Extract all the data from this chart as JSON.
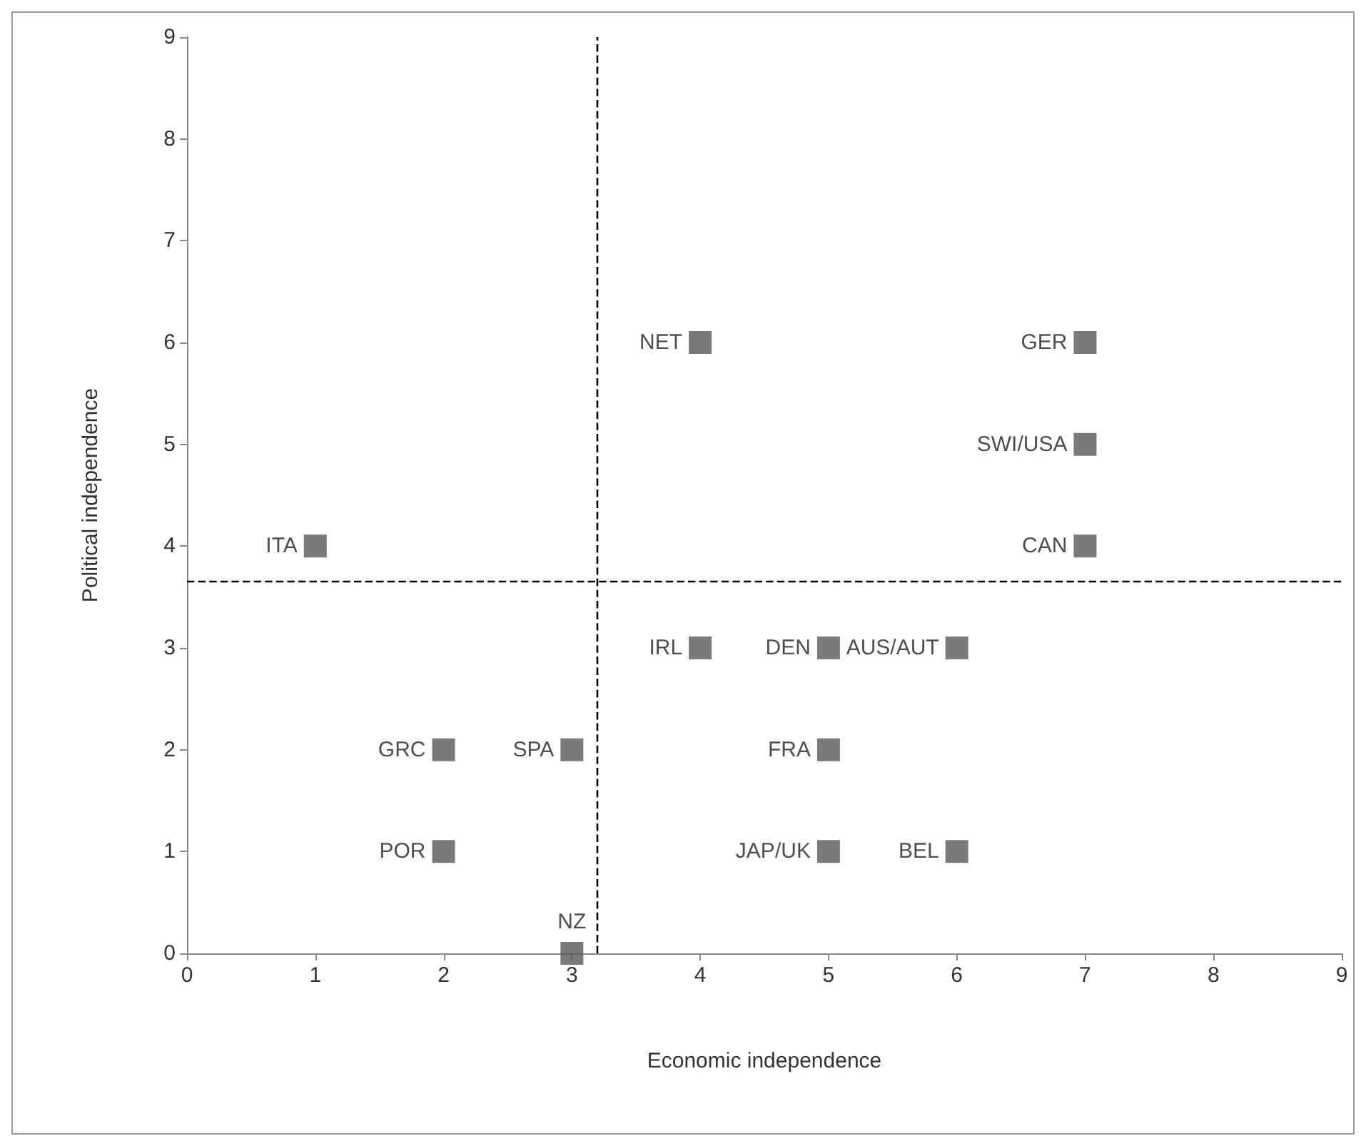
{
  "chart_data": {
    "type": "scatter",
    "xlabel": "Economic independence",
    "ylabel": "Political independence",
    "x": [
      1,
      4,
      7,
      7,
      7,
      4,
      5,
      6,
      2,
      3,
      5,
      2,
      5,
      6,
      3
    ],
    "series": [
      {
        "color": "#595959",
        "values": [
          4,
          6,
          6,
          5,
          4,
          3,
          3,
          3,
          2,
          2,
          2,
          1,
          1,
          1,
          0
        ]
      }
    ],
    "xlim": [
      0,
      9
    ],
    "xticks": [
      0,
      1,
      2,
      3,
      4,
      5,
      6,
      7,
      8,
      9
    ],
    "ylim": [
      0,
      9
    ],
    "yticks": [
      0,
      1,
      2,
      3,
      4,
      5,
      6,
      7,
      8,
      9
    ],
    "grid": false,
    "marker": "square",
    "ref_lines": [
      {
        "axis": "x",
        "value": 3.2,
        "color": "#000000",
        "line_style": "dashed"
      },
      {
        "axis": "y",
        "value": 3.65,
        "color": "#000000",
        "line_style": "dashed"
      }
    ],
    "annotations": [
      {
        "text": "ITA",
        "x": 1,
        "y": 4
      },
      {
        "text": "NET",
        "x": 4,
        "y": 6
      },
      {
        "text": "GER",
        "x": 7,
        "y": 6
      },
      {
        "text": "SWI/USA",
        "x": 7,
        "y": 5
      },
      {
        "text": "CAN",
        "x": 7,
        "y": 4
      },
      {
        "text": "IRL",
        "x": 4,
        "y": 3
      },
      {
        "text": "DEN",
        "x": 5,
        "y": 3
      },
      {
        "text": "AUS/AUT",
        "x": 6,
        "y": 3
      },
      {
        "text": "GRC",
        "x": 2,
        "y": 2
      },
      {
        "text": "SPA",
        "x": 3,
        "y": 2
      },
      {
        "text": "FRA",
        "x": 5,
        "y": 2
      },
      {
        "text": "POR",
        "x": 2,
        "y": 1
      },
      {
        "text": "JAP/UK",
        "x": 5,
        "y": 1
      },
      {
        "text": "BEL",
        "x": 6,
        "y": 1
      },
      {
        "text": "NZ",
        "x": 3,
        "y": 0
      }
    ]
  }
}
